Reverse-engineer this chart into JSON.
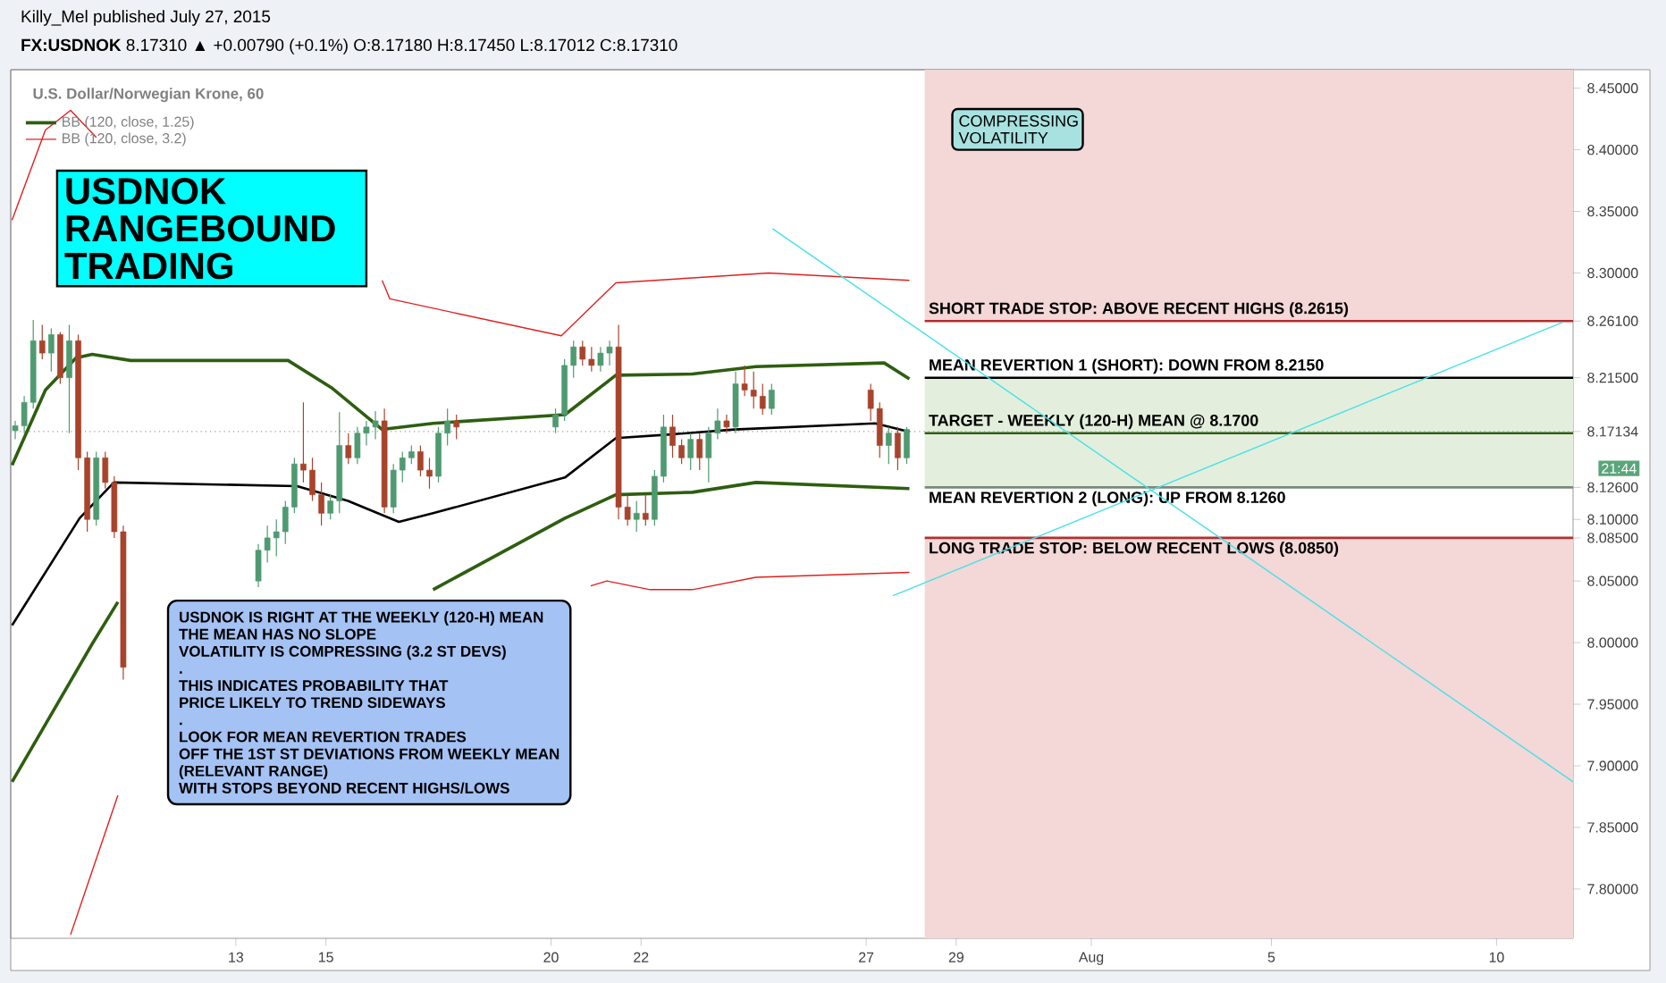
{
  "chart_data": {
    "type": "candlestick",
    "title": "**FX:USDNOK** 8.17310 ▲ +0.00790 (+0.1%) O:8.17180 H:8.17450 L:8.17012 C:8.17310",
    "annotations": [
      "Killy_Mel published July 27, 2015",
      "U.S. Dollar/Norwegian Krone, 60",
      "USDNOK RANGEBOUND TRADING",
      "COMPRESSING VOLATILITY",
      "USDNOK IS RIGHT AT THE WEEKLY (120-H) MEAN",
      "THE MEAN HAS NO SLOPE",
      "VOLATILITY IS COMPRESSING (3.2 ST DEVS)",
      ".",
      "THIS INDICATES PROBABILITY THAT",
      "PRICE LIKELY TO TREND SIDEWAYS",
      ".",
      "LOOK FOR MEAN REVERTION TRADES",
      "OFF THE 1ST ST DEVIATIONS FROM WEEKLY MEAN",
      "(RELEVANT RANGE)",
      "WITH STOPS BEYOND RECENT HIGHS/LOWS",
      "21:44"
    ],
    "x": [
      "2015-07-08T02:24",
      "2015-07-08T07:12",
      "2015-07-08T12:00",
      "2015-07-08T16:48",
      "2015-07-08T21:36",
      "2015-07-09T02:24",
      "2015-07-09T07:12",
      "2015-07-09T12:00",
      "2015-07-09T16:48",
      "2015-07-09T21:36",
      "2015-07-10T02:24",
      "2015-07-10T07:12",
      "2015-07-10T12:00",
      "2015-07-13T12:00",
      "2015-07-13T16:48",
      "2015-07-13T21:36",
      "2015-07-14T02:24",
      "2015-07-14T07:12",
      "2015-07-14T12:00",
      "2015-07-14T16:48",
      "2015-07-14T21:36",
      "2015-07-15T02:24",
      "2015-07-15T07:12",
      "2015-07-15T12:00",
      "2015-07-15T16:48",
      "2015-07-15T21:36",
      "2015-07-16T02:24",
      "2015-07-16T07:12",
      "2015-07-16T12:00",
      "2015-07-16T16:48",
      "2015-07-16T21:36",
      "2015-07-17T02:24",
      "2015-07-17T07:12",
      "2015-07-17T12:00",
      "2015-07-17T16:48",
      "2015-07-17T21:36",
      "2015-07-20T02:24",
      "2015-07-20T07:12",
      "2015-07-20T12:00",
      "2015-07-20T16:48",
      "2015-07-20T21:36",
      "2015-07-21T02:24",
      "2015-07-21T07:12",
      "2015-07-21T12:00",
      "2015-07-21T16:48",
      "2015-07-21T21:36",
      "2015-07-22T02:24",
      "2015-07-22T07:12",
      "2015-07-22T12:00",
      "2015-07-22T16:48",
      "2015-07-22T21:36",
      "2015-07-23T02:24",
      "2015-07-23T07:12",
      "2015-07-23T12:00",
      "2015-07-23T16:48",
      "2015-07-23T21:36",
      "2015-07-24T02:24",
      "2015-07-24T07:12",
      "2015-07-24T12:00",
      "2015-07-24T16:48",
      "2015-07-24T21:36",
      "2015-07-27T02:24",
      "2015-07-27T07:12",
      "2015-07-27T12:00",
      "2015-07-27T16:48",
      "2015-07-27T21:36"
    ],
    "ohlc": [
      [
        8.172,
        8.18,
        8.165,
        8.176
      ],
      [
        8.176,
        8.2,
        8.17,
        8.195
      ],
      [
        8.195,
        8.262,
        8.19,
        8.245
      ],
      [
        8.245,
        8.258,
        8.23,
        8.235
      ],
      [
        8.235,
        8.255,
        8.22,
        8.25
      ],
      [
        8.25,
        8.252,
        8.21,
        8.215
      ],
      [
        8.215,
        8.258,
        8.17,
        8.245
      ],
      [
        8.245,
        8.25,
        8.14,
        8.15
      ],
      [
        8.15,
        8.155,
        8.09,
        8.1
      ],
      [
        8.1,
        8.155,
        8.095,
        8.15
      ],
      [
        8.15,
        8.155,
        8.125,
        8.13
      ],
      [
        8.13,
        8.135,
        8.085,
        8.09
      ],
      [
        8.09,
        8.095,
        7.97,
        7.98
      ],
      [
        8.05,
        8.08,
        8.045,
        8.075
      ],
      [
        8.075,
        8.095,
        8.065,
        8.085
      ],
      [
        8.085,
        8.1,
        8.07,
        8.09
      ],
      [
        8.09,
        8.115,
        8.08,
        8.11
      ],
      [
        8.11,
        8.15,
        8.105,
        8.145
      ],
      [
        8.145,
        8.195,
        8.13,
        8.14
      ],
      [
        8.14,
        8.15,
        8.115,
        8.12
      ],
      [
        8.12,
        8.13,
        8.095,
        8.105
      ],
      [
        8.105,
        8.12,
        8.1,
        8.115
      ],
      [
        8.115,
        8.187,
        8.105,
        8.16
      ],
      [
        8.16,
        8.17,
        8.145,
        8.15
      ],
      [
        8.15,
        8.175,
        8.145,
        8.17
      ],
      [
        8.17,
        8.18,
        8.16,
        8.175
      ],
      [
        8.175,
        8.188,
        8.165,
        8.18
      ],
      [
        8.18,
        8.19,
        8.105,
        8.11
      ],
      [
        8.11,
        8.145,
        8.105,
        8.14
      ],
      [
        8.14,
        8.155,
        8.13,
        8.15
      ],
      [
        8.15,
        8.16,
        8.145,
        8.155
      ],
      [
        8.155,
        8.16,
        8.135,
        8.14
      ],
      [
        8.14,
        8.15,
        8.125,
        8.135
      ],
      [
        8.135,
        8.175,
        8.13,
        8.17
      ],
      [
        8.17,
        8.19,
        8.16,
        8.18
      ],
      [
        8.18,
        8.185,
        8.165,
        8.175
      ],
      [
        8.175,
        8.19,
        8.17,
        8.185
      ],
      [
        8.185,
        8.23,
        8.18,
        8.225
      ],
      [
        8.225,
        8.245,
        8.215,
        8.24
      ],
      [
        8.24,
        8.245,
        8.225,
        8.23
      ],
      [
        8.23,
        8.24,
        8.22,
        8.225
      ],
      [
        8.225,
        8.24,
        8.22,
        8.235
      ],
      [
        8.235,
        8.245,
        8.225,
        8.24
      ],
      [
        8.24,
        8.258,
        8.1,
        8.11
      ],
      [
        8.11,
        8.12,
        8.095,
        8.1
      ],
      [
        8.1,
        8.115,
        8.09,
        8.105
      ],
      [
        8.105,
        8.12,
        8.095,
        8.1
      ],
      [
        8.1,
        8.14,
        8.095,
        8.135
      ],
      [
        8.135,
        8.185,
        8.13,
        8.175
      ],
      [
        8.175,
        8.185,
        8.15,
        8.16
      ],
      [
        8.16,
        8.165,
        8.145,
        8.15
      ],
      [
        8.15,
        8.17,
        8.14,
        8.165
      ],
      [
        8.165,
        8.17,
        8.14,
        8.15
      ],
      [
        8.15,
        8.175,
        8.13,
        8.17
      ],
      [
        8.17,
        8.19,
        8.165,
        8.18
      ],
      [
        8.18,
        8.185,
        8.17,
        8.175
      ],
      [
        8.175,
        8.22,
        8.17,
        8.21
      ],
      [
        8.21,
        8.225,
        8.2,
        8.205
      ],
      [
        8.205,
        8.22,
        8.19,
        8.2
      ],
      [
        8.2,
        8.21,
        8.185,
        8.19
      ],
      [
        8.19,
        8.21,
        8.185,
        8.205
      ],
      [
        8.205,
        8.21,
        8.18,
        8.19
      ],
      [
        8.19,
        8.195,
        8.15,
        8.16
      ],
      [
        8.16,
        8.175,
        8.145,
        8.17
      ],
      [
        8.17,
        8.175,
        8.14,
        8.15
      ],
      [
        8.15,
        8.175,
        8.145,
        8.173
      ]
    ],
    "series": [
      {
        "type": "line",
        "color": "#000000",
        "x": [
          "2015-07-08T00:43",
          "2015-07-09T12:43",
          "2015-07-10T06:58",
          "2015-07-14T08:38",
          "2015-07-15T11:46",
          "2015-07-16T14:53",
          "2015-07-17T09:07",
          "2015-07-20T07:26",
          "2015-07-21T10:34",
          "2015-07-22T15:50",
          "2015-07-24T01:41",
          "2015-07-27T04:48",
          "2015-07-27T23:02"
        ],
        "values": [
          8.014,
          8.101,
          8.13,
          8.127,
          8.115,
          8.098,
          8.105,
          8.134,
          8.166,
          8.169,
          8.173,
          8.178,
          8.171
        ]
      },
      {
        "type": "line",
        "name": "BB (120, close, 1.25)",
        "color": "#2e5e10",
        "x": [
          "2015-07-08T00:43",
          "2015-07-08T18:29",
          "2015-07-09T10:48",
          "2015-07-09T19:26",
          "2015-07-10T15:50",
          "2015-07-14T03:50",
          "2015-07-15T02:53",
          "2015-07-16T06:00",
          "2015-07-17T09:07",
          "2015-07-20T07:26",
          "2015-07-21T10:34",
          "2015-07-23T03:22",
          "2015-07-24T13:12",
          "2015-07-27T09:36",
          "2015-07-27T23:02"
        ],
        "values": [
          8.144,
          8.205,
          8.231,
          8.234,
          8.229,
          8.229,
          8.207,
          8.173,
          8.178,
          8.185,
          8.217,
          8.218,
          8.224,
          8.227,
          8.214
        ]
      },
      {
        "type": "line",
        "color": "#2e5e10",
        "x": [
          "2015-07-08T00:43",
          "2015-07-09T19:26",
          "2015-07-10T09:07",
          "2015-07-14T12:00",
          "2015-07-17T09:07",
          "2015-07-20T07:26",
          "2015-07-21T10:34",
          "2015-07-23T03:22",
          "2015-07-24T13:12",
          "2015-07-27T23:02"
        ],
        "values": [
          7.887,
          7.999,
          8.033,
          null,
          8.043,
          8.101,
          8.12,
          8.122,
          8.13,
          8.125
        ]
      },
      {
        "type": "line",
        "name": "BB (120, close, 3.2)",
        "color": "#e02020",
        "x": [
          "2015-07-08T00:43",
          "2015-07-08T18:29",
          "2015-07-09T07:55",
          "2015-07-09T21:36",
          "2015-07-10T04:19",
          "2015-07-14T00:00",
          "2015-07-15T16:19",
          "2015-07-16T06:00",
          "2015-07-16T10:05",
          "2015-07-20T05:31",
          "2015-07-21T05:46",
          "2015-07-21T10:34",
          "2015-07-23T03:22",
          "2015-07-24T19:55",
          "2015-07-27T23:02"
        ],
        "values": [
          8.343,
          8.416,
          8.432,
          8.41,
          null,
          null,
          null,
          8.294,
          8.279,
          8.249,
          8.285,
          8.292,
          8.296,
          8.3,
          8.294
        ]
      },
      {
        "type": "line",
        "color": "#e02020",
        "x": [
          "2015-07-09T07:55",
          "2015-07-10T09:07",
          "2015-07-16T00:00",
          "2015-07-20T21:07",
          "2015-07-21T05:46",
          "2015-07-22T04:48",
          "2015-07-23T03:22",
          "2015-07-24T13:12",
          "2015-07-27T23:02"
        ],
        "values": [
          7.763,
          7.876,
          null,
          8.046,
          8.05,
          8.043,
          8.043,
          8.053,
          8.057
        ]
      },
      {
        "type": "line",
        "color": "#48e0e8",
        "x": [
          "2015-07-24T22:05",
          "2015-08-11T16:48"
        ],
        "values": [
          8.336,
          7.887
        ]
      },
      {
        "type": "line",
        "color": "#48e0e8",
        "x": [
          "2015-07-27T14:10",
          "2015-08-11T11:17"
        ],
        "values": [
          8.038,
          8.26
        ]
      }
    ],
    "ref_lines": [
      {
        "axis": "y",
        "value": 8.261,
        "label": "SHORT TRADE STOP: ABOVE RECENT HIGHS (8.2615)",
        "color": "#b03030"
      },
      {
        "axis": "y",
        "value": 8.215,
        "label": "MEAN REVERTION 1 (SHORT): DOWN FROM 8.2150",
        "color": "#000000"
      },
      {
        "axis": "y",
        "value": 8.17,
        "label": "TARGET - WEEKLY (120-H) MEAN @ 8.1700",
        "color": "#2e5e10"
      },
      {
        "axis": "y",
        "value": 8.17134,
        "color": "#999999",
        "line_style": "dotted"
      },
      {
        "axis": "y",
        "value": 8.126,
        "label": "MEAN REVERTION 2 (LONG): UP FROM 8.1260",
        "color": "#7a8a7a"
      },
      {
        "axis": "y",
        "value": 8.085,
        "label": "LONG TRADE STOP: BELOW RECENT LOWS (8.0850)",
        "color": "#b03030"
      }
    ],
    "bands": [
      {
        "axis": "y",
        "from": 8.261,
        "to": 8.465,
        "color": "#f4d7d7"
      },
      {
        "axis": "y",
        "from": 8.126,
        "to": 8.215,
        "color": "#e3efdc"
      },
      {
        "axis": "y",
        "from": 7.76,
        "to": 8.085,
        "color": "#f4d7d7"
      }
    ],
    "xlim": [
      "2015-07-08",
      "2015-08-11T16:48"
    ],
    "ylim": [
      7.76,
      8.465
    ],
    "xticks": [
      {
        "value": "2015-07-13",
        "label": "13"
      },
      {
        "value": "2015-07-15",
        "label": "15"
      },
      {
        "value": "2015-07-20",
        "label": "20"
      },
      {
        "value": "2015-07-22",
        "label": "22"
      },
      {
        "value": "2015-07-27",
        "label": "27"
      },
      {
        "value": "2015-07-29",
        "label": "29"
      },
      {
        "value": "2015-08-01",
        "label": "Aug"
      },
      {
        "value": "2015-08-05",
        "label": "5"
      },
      {
        "value": "2015-08-10",
        "label": "10"
      }
    ],
    "yticks": [
      {
        "value": 7.8,
        "label": "7.80000"
      },
      {
        "value": 7.85,
        "label": "7.85000"
      },
      {
        "value": 7.9,
        "label": "7.90000"
      },
      {
        "value": 7.95,
        "label": "7.95000"
      },
      {
        "value": 8.0,
        "label": "8.00000"
      },
      {
        "value": 8.05,
        "label": "8.05000"
      },
      {
        "value": 8.085,
        "label": "8.08500"
      },
      {
        "value": 8.1,
        "label": "8.10000"
      },
      {
        "value": 8.126,
        "label": "8.12600"
      },
      {
        "value": 8.17134,
        "label": "8.17134"
      },
      {
        "value": 8.215,
        "label": "8.21500"
      },
      {
        "value": 8.261,
        "label": "8.26100"
      },
      {
        "value": 8.3,
        "label": "8.30000"
      },
      {
        "value": 8.35,
        "label": "8.35000"
      },
      {
        "value": 8.4,
        "label": "8.40000"
      },
      {
        "value": 8.45,
        "label": "8.45000"
      }
    ],
    "legend": "top left"
  }
}
